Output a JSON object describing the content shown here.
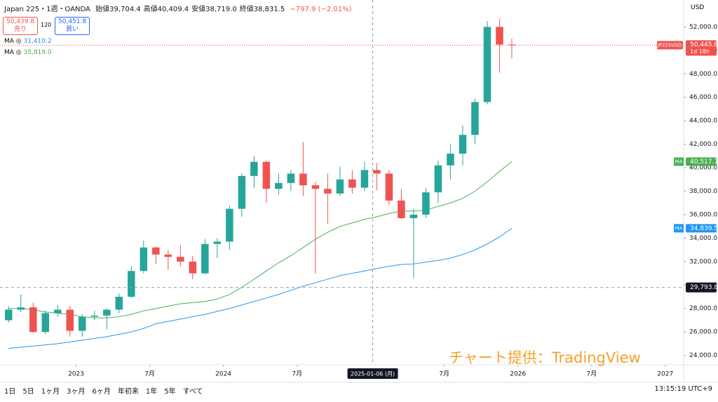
{
  "header": {
    "symbol": "Japan 225・1週・OANDA",
    "ohlc": [
      "始値39,704.4",
      "高値40,409.4",
      "安値38,719.0",
      "終値38,831.5"
    ],
    "change": "−797.9 (−2.01%)",
    "sell_price": "50,439.8",
    "sell": "売り",
    "spread": "120",
    "buy_price": "50,451.8",
    "buy": "買い",
    "currency": "USD",
    "ma_values": [
      "31,410.2",
      "35,819.0"
    ]
  },
  "chart_data": {
    "type": "candlestick",
    "up_color": "#26a69a",
    "down_color": "#ef5350",
    "x": [
      "2022-07",
      "2022-08",
      "2022-09",
      "2022-10",
      "2022-11",
      "2022-12",
      "2023-01",
      "2023-02",
      "2023-03",
      "2023-04",
      "2023-05",
      "2023-06",
      "2023-07",
      "2023-08",
      "2023-09",
      "2023-10",
      "2023-11",
      "2023-12",
      "2024-01",
      "2024-02",
      "2024-03",
      "2024-04",
      "2024-05",
      "2024-06",
      "2024-07",
      "2024-08",
      "2024-09",
      "2024-10",
      "2024-11",
      "2024-12",
      "2025-01",
      "2025-02",
      "2025-03",
      "2025-04",
      "2025-05",
      "2025-06",
      "2025-07",
      "2025-08",
      "2025-09",
      "2025-10",
      "2025-11",
      "2025-12"
    ],
    "open": [
      27000,
      27900,
      28100,
      26000,
      27600,
      27900,
      26100,
      27300,
      27400,
      27900,
      29000,
      31200,
      33200,
      32600,
      32400,
      32000,
      31000,
      33500,
      33700,
      36500,
      39300,
      40500,
      38200,
      38700,
      39500,
      38500,
      38200,
      37800,
      39000,
      38300,
      39800,
      39500,
      37200,
      35700,
      36000,
      37900,
      40200,
      41200,
      42800,
      45600,
      52000,
      50500
    ],
    "high": [
      28200,
      29200,
      28500,
      27800,
      28300,
      28200,
      27500,
      27800,
      28000,
      29300,
      31600,
      33800,
      33300,
      33000,
      33400,
      32500,
      33900,
      34000,
      36800,
      39500,
      41000,
      40600,
      39500,
      39800,
      42200,
      38800,
      39500,
      40100,
      39800,
      40500,
      40400,
      39800,
      38200,
      36500,
      38300,
      40600,
      42000,
      43600,
      45900,
      52500,
      52700,
      51000
    ],
    "low": [
      26800,
      27700,
      25900,
      25800,
      27300,
      25600,
      25600,
      27000,
      26200,
      27600,
      28900,
      31000,
      31800,
      31300,
      31600,
      30500,
      30900,
      32300,
      33000,
      35800,
      38300,
      37000,
      37700,
      38000,
      37600,
      31000,
      35200,
      37600,
      37800,
      38000,
      38100,
      36800,
      35600,
      30600,
      35700,
      37000,
      39000,
      40200,
      42000,
      45400,
      48100,
      49300
    ],
    "close": [
      27900,
      28100,
      26000,
      27600,
      27900,
      26100,
      27300,
      27400,
      27900,
      29000,
      31200,
      33200,
      32600,
      32400,
      32000,
      31000,
      33500,
      33700,
      36500,
      39300,
      40500,
      38200,
      38700,
      39500,
      38500,
      38200,
      37800,
      39000,
      38300,
      39800,
      39500,
      37200,
      35700,
      36000,
      37900,
      40200,
      41200,
      42800,
      45600,
      52000,
      50500,
      50445.8
    ],
    "series": [
      {
        "name": "MA",
        "color": "#2196f3",
        "end_label": "34,839.5",
        "values": [
          24600,
          24700,
          24800,
          24900,
          25000,
          25150,
          25300,
          25450,
          25600,
          25800,
          26000,
          26300,
          26700,
          26900,
          27100,
          27300,
          27500,
          27750,
          28000,
          28300,
          28600,
          28900,
          29200,
          29550,
          29900,
          30200,
          30500,
          30800,
          31000,
          31200,
          31410,
          31600,
          31750,
          31800,
          31950,
          32100,
          32300,
          32600,
          33000,
          33500,
          34100,
          34839.5
        ]
      },
      {
        "name": "MA",
        "color": "#4caf50",
        "end_label": "40,517.7",
        "values": [
          28000,
          28000,
          27900,
          27700,
          27600,
          27500,
          27300,
          27200,
          27200,
          27300,
          27500,
          27800,
          28000,
          28200,
          28400,
          28500,
          28600,
          28800,
          29200,
          29800,
          30500,
          31200,
          31900,
          32500,
          33200,
          33900,
          34500,
          35000,
          35300,
          35600,
          35819,
          36100,
          36300,
          36300,
          36400,
          36700,
          37000,
          37400,
          38000,
          38800,
          39700,
          40517.7
        ]
      }
    ],
    "last_price": {
      "value": 50445.8,
      "label": "50,445.8",
      "symbol": "JP225USD",
      "countdown": "1d 18h"
    },
    "crosshair": {
      "x": {
        "value": "2025-01-06",
        "label": "2025-01-06 (月)"
      },
      "y": {
        "value": 29793.8,
        "label": "29,793.8"
      }
    },
    "xlim": [
      "2022-06-25",
      "2027-02-16"
    ],
    "xticks": [
      {
        "value": "2023-01-01",
        "label": "2023"
      },
      {
        "value": "2023-07-01",
        "label": "7月"
      },
      {
        "value": "2024-01-01",
        "label": "2024"
      },
      {
        "value": "2024-07-01",
        "label": "7月"
      },
      {
        "value": "2025-07-01",
        "label": "7月"
      },
      {
        "value": "2026-01-01",
        "label": "2026"
      },
      {
        "value": "2026-07-01",
        "label": "7月"
      },
      {
        "value": "2027-01-01",
        "label": "2027"
      }
    ],
    "ylim": [
      23200,
      53100
    ],
    "yticks": [
      {
        "value": 24000,
        "label": "24,000.0"
      },
      {
        "value": 26000,
        "label": "26,000.0"
      },
      {
        "value": 28000,
        "label": "28,000.0"
      },
      {
        "value": 30000,
        "label": "30,000.0"
      },
      {
        "value": 32000,
        "label": "32,000.0"
      },
      {
        "value": 34000,
        "label": "34,000.0"
      },
      {
        "value": 36000,
        "label": "36,000.0"
      },
      {
        "value": 38000,
        "label": "38,000.0"
      },
      {
        "value": 40000,
        "label": "40,000.0"
      },
      {
        "value": 42000,
        "label": "42,000.0"
      },
      {
        "value": 44000,
        "label": "44,000.0"
      },
      {
        "value": 46000,
        "label": "46,000.0"
      },
      {
        "value": 48000,
        "label": "48,000.0"
      },
      {
        "value": 50000,
        "label": "50,000.0"
      },
      {
        "value": 52000,
        "label": "52,000.0"
      }
    ]
  },
  "toolbar": {
    "ranges": [
      "1日",
      "5日",
      "1ヶ月",
      "3ヶ月",
      "6ヶ月",
      "年初来",
      "1年",
      "5年",
      "すべて"
    ],
    "clock": "13:15:19 UTC+9"
  },
  "watermark": "チャート提供：TradingView"
}
